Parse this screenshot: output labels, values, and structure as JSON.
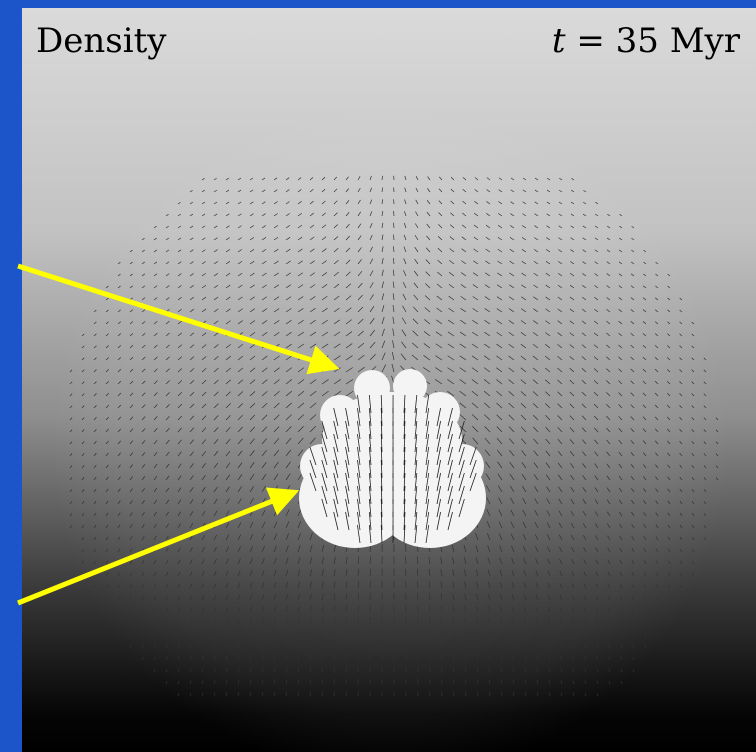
{
  "panel_label": "Density",
  "time_label": {
    "symbol": "t",
    "text": "= 35 Myr"
  }
}
